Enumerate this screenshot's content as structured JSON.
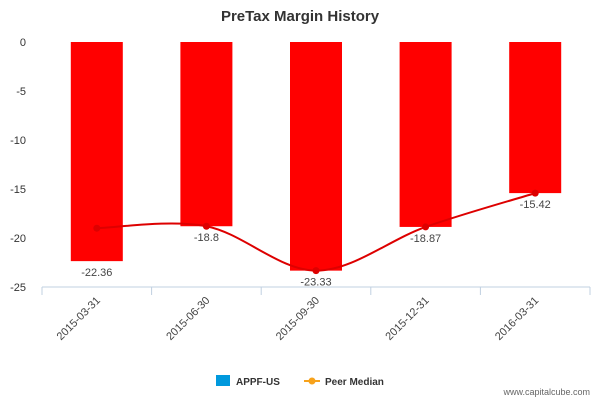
{
  "chart_data": {
    "type": "bar",
    "title": "PreTax Margin History",
    "categories": [
      "2015-03-31",
      "2015-06-30",
      "2015-09-30",
      "2015-12-31",
      "2016-03-31"
    ],
    "series": [
      {
        "name": "APPF-US",
        "type": "bar",
        "values": [
          -22.36,
          -18.8,
          -23.33,
          -18.87,
          -15.42
        ]
      },
      {
        "name": "Peer Median",
        "type": "line",
        "values": [
          -19.0,
          -18.8,
          -23.33,
          -18.87,
          -15.42
        ]
      }
    ],
    "data_labels": [
      "-22.36",
      "-18.8",
      "-23.33",
      "-18.87",
      "-15.42"
    ],
    "y_ticks": [
      0,
      -5,
      -10,
      -15,
      -20,
      -25
    ],
    "ylim": [
      -25,
      0
    ],
    "xlabel": "",
    "ylabel": "",
    "grid": false,
    "legend_position": "bottom-center",
    "colors": {
      "bar": "#ff0000",
      "line": "#dd0000",
      "legend_bar": "#0099dd",
      "legend_line": "#f7a21b"
    }
  },
  "footer": {
    "source": "www.capitalcube.com"
  }
}
